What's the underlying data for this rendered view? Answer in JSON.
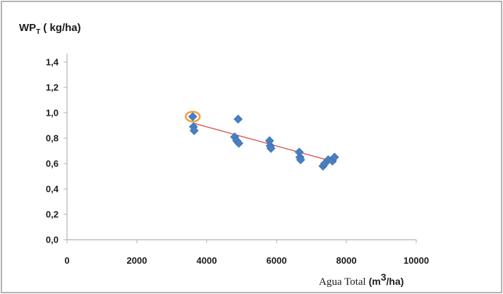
{
  "chart_data": {
    "type": "scatter",
    "ylabel": {
      "main": "WP",
      "subscript": "T",
      "unit": "( kg/ha)"
    },
    "xlabel": {
      "main": "Agua Total",
      "unit_prefix": "(m",
      "unit_sup": "3",
      "unit_suffix": "/ha)"
    },
    "xlim": [
      0,
      10000
    ],
    "ylim": [
      0,
      1.4
    ],
    "x_ticks": [
      0,
      2000,
      4000,
      6000,
      8000,
      10000
    ],
    "x_tick_labels": [
      "0",
      "2000",
      "4000",
      "6000",
      "8000",
      "10000"
    ],
    "y_ticks": [
      0,
      0.2,
      0.4,
      0.6,
      0.8,
      1.0,
      1.2,
      1.4
    ],
    "y_tick_labels": [
      "0,0",
      "0,2",
      "0,4",
      "0,6",
      "0,8",
      "1,0",
      "1,2",
      "1,4"
    ],
    "grid": false,
    "legend": "none",
    "series": [
      {
        "marker": "diamond",
        "color": "#4a7fc1",
        "x": [
          3600,
          3620,
          3640,
          4800,
          4860,
          4900,
          4920,
          5800,
          5820,
          5840,
          6650,
          6670,
          6690,
          7330,
          7380,
          7480,
          7600,
          7660
        ],
        "y": [
          0.97,
          0.89,
          0.86,
          0.81,
          0.78,
          0.95,
          0.76,
          0.78,
          0.74,
          0.72,
          0.69,
          0.65,
          0.63,
          0.58,
          0.6,
          0.63,
          0.62,
          0.65
        ]
      }
    ],
    "trendline": {
      "color": "#d9534f",
      "x": [
        3600,
        7700
      ],
      "y": [
        0.92,
        0.61
      ]
    },
    "highlight": {
      "color": "#f0a040",
      "x": 3600,
      "y": 0.97
    }
  }
}
